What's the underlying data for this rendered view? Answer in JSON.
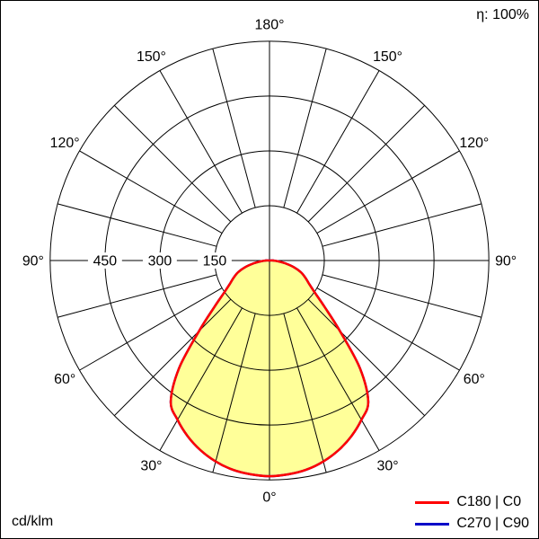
{
  "header": {
    "efficiency_label": "η: 100%"
  },
  "footer": {
    "unit_label": "cd/klm"
  },
  "legend": {
    "items": [
      {
        "label": "C180 | C0",
        "color": "#ff0000"
      },
      {
        "label": "C270 | C90",
        "color": "#0000c8"
      }
    ]
  },
  "chart_data": {
    "type": "polar-line",
    "unit": "cd/klm",
    "efficiency_percent": 100,
    "angle_tick_step_deg": 15,
    "angle_label_step_deg": 30,
    "angle_labels": [
      "0°",
      "30°",
      "60°",
      "90°",
      "120°",
      "150°",
      "180°"
    ],
    "radial_rings": [
      150,
      300,
      450,
      600
    ],
    "radial_ring_labels": [
      "150",
      "300",
      "450"
    ],
    "radial_max": 600,
    "grid_color": "#000000",
    "legend_position": "bottom-right",
    "series": [
      {
        "name": "C180 | C0",
        "color": "#ff0000",
        "fill": "#ffff99",
        "gamma_deg": [
          0,
          5,
          10,
          15,
          20,
          25,
          30,
          35,
          40,
          45,
          50,
          55,
          60,
          65,
          70,
          75,
          80,
          85,
          90,
          95,
          100
        ],
        "values_cd_per_klm": [
          590,
          587,
          581,
          569,
          552,
          530,
          503,
          471,
          385,
          272,
          196,
          150,
          124,
          107,
          90,
          68,
          44,
          24,
          11,
          4,
          0
        ]
      },
      {
        "name": "C270 | C90",
        "color": "#0000c8",
        "gamma_deg": [
          0,
          5,
          10,
          15,
          20,
          25,
          30,
          35,
          40,
          45,
          50,
          55,
          60,
          65,
          70,
          75,
          80,
          85,
          90,
          95,
          100
        ],
        "values_cd_per_klm": [
          590,
          587,
          581,
          569,
          552,
          530,
          503,
          471,
          385,
          272,
          196,
          150,
          124,
          107,
          90,
          68,
          44,
          24,
          11,
          4,
          0
        ]
      }
    ]
  }
}
